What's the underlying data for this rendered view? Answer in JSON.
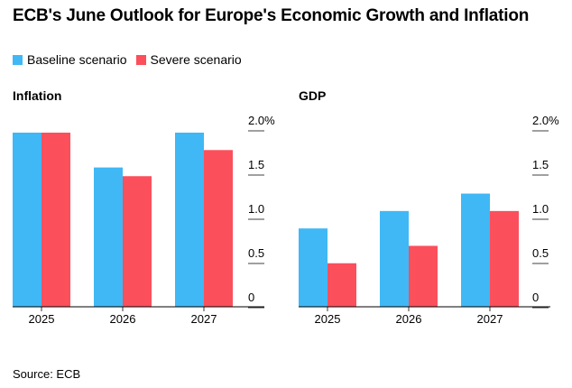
{
  "title": "ECB's June Outlook for Europe's Economic Growth and Inflation",
  "legend": [
    {
      "label": "Baseline scenario",
      "color": "#40b8f5"
    },
    {
      "label": "Severe scenario",
      "color": "#fb4f5c"
    }
  ],
  "source": "Source: ECB",
  "chart_data": [
    {
      "type": "bar",
      "title": "Inflation",
      "categories": [
        "2025",
        "2026",
        "2027"
      ],
      "series": [
        {
          "name": "Baseline scenario",
          "values": [
            2.0,
            1.6,
            2.0
          ]
        },
        {
          "name": "Severe scenario",
          "values": [
            2.0,
            1.5,
            1.8
          ]
        }
      ],
      "ylim": [
        0,
        2.0
      ],
      "yticks": [
        "2.0%",
        "1.5",
        "1.0",
        "0.5",
        "0"
      ],
      "xlabel": "",
      "ylabel": ""
    },
    {
      "type": "bar",
      "title": "GDP",
      "categories": [
        "2025",
        "2026",
        "2027"
      ],
      "series": [
        {
          "name": "Baseline scenario",
          "values": [
            0.9,
            1.1,
            1.3
          ]
        },
        {
          "name": "Severe scenario",
          "values": [
            0.5,
            0.7,
            1.1
          ]
        }
      ],
      "ylim": [
        0,
        2.0
      ],
      "yticks": [
        "2.0%",
        "1.5",
        "1.0",
        "0.5",
        "0"
      ],
      "xlabel": "",
      "ylabel": ""
    }
  ]
}
